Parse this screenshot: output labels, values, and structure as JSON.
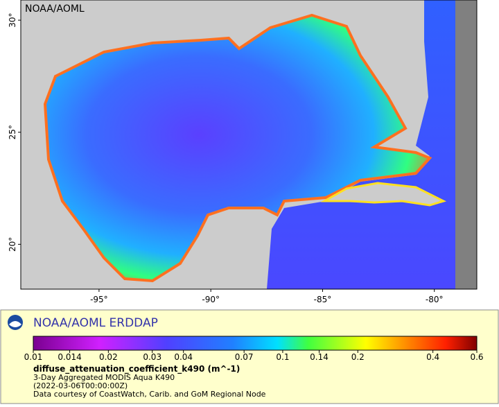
{
  "map": {
    "source_label": "NOAA/AOML",
    "xlim": [
      -98.5,
      -78.1
    ],
    "ylim": [
      18.0,
      30.9
    ],
    "xticks": [
      {
        "value": -95,
        "label": "-95°"
      },
      {
        "value": -90,
        "label": "-90°"
      },
      {
        "value": -85,
        "label": "-85°"
      },
      {
        "value": -80,
        "label": "-80°"
      }
    ],
    "yticks": [
      {
        "value": 20,
        "label": "20°"
      },
      {
        "value": 25,
        "label": "25°"
      },
      {
        "value": 30,
        "label": "30°"
      }
    ]
  },
  "legend": {
    "title": "NOAA/AOML ERDDAP",
    "colorbar": {
      "scale": "log",
      "lim": [
        0.01,
        0.6
      ],
      "ticks": [
        0.01,
        0.014,
        0.02,
        0.03,
        0.04,
        0.07,
        0.1,
        0.14,
        0.2,
        0.4,
        0.6
      ]
    },
    "variable": "diffuse_attenuation_coefficient_k490 (m^-1)",
    "lines": [
      "3-Day Aggregated MODIS Aqua K490",
      "(2022-03-06T00:00:00Z)",
      "Data courtesy of CoastWatch, Carib. and GoM Regional Node"
    ]
  }
}
